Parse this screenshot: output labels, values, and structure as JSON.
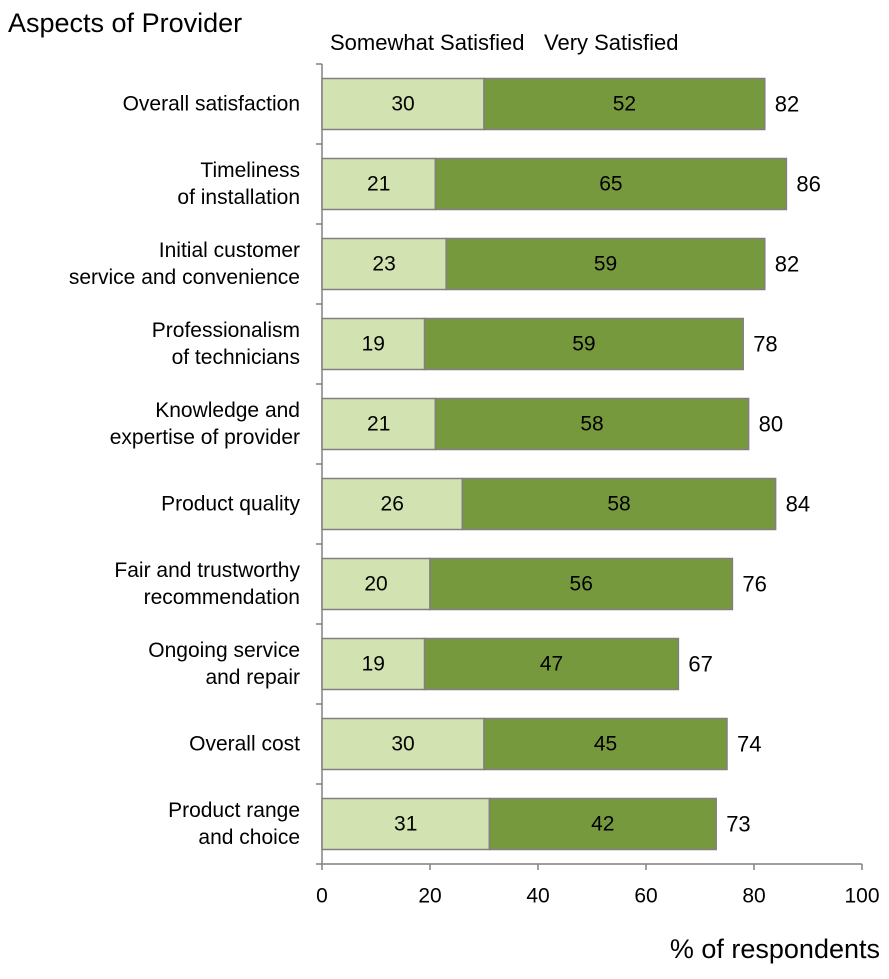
{
  "chart_data": {
    "type": "bar",
    "orientation": "horizontal",
    "stacked": true,
    "title": "Aspects of Provider",
    "xlabel": "% of respondents",
    "ylabel": "",
    "xlim": [
      0,
      100
    ],
    "xticks": [
      0,
      20,
      40,
      60,
      80,
      100
    ],
    "grid": false,
    "legend_position": "top",
    "categories": [
      [
        "Overall satisfaction"
      ],
      [
        "Timeliness",
        "of installation"
      ],
      [
        "Initial customer",
        "service and convenience"
      ],
      [
        "Professionalism",
        "of technicians"
      ],
      [
        "Knowledge and",
        "expertise of provider"
      ],
      [
        "Product quality"
      ],
      [
        "Fair and trustworthy",
        "recommendation"
      ],
      [
        "Ongoing service",
        "and repair"
      ],
      [
        "Overall cost"
      ],
      [
        "Product range",
        "and choice"
      ]
    ],
    "series": [
      {
        "name": "Somewhat Satisfied",
        "color": "#d2e2b0",
        "values": [
          30,
          21,
          23,
          19,
          21,
          26,
          20,
          19,
          30,
          31
        ]
      },
      {
        "name": "Very Satisfied",
        "color": "#77993d",
        "values": [
          52,
          65,
          59,
          59,
          58,
          58,
          56,
          47,
          45,
          42
        ]
      }
    ],
    "totals": [
      82,
      86,
      82,
      78,
      80,
      84,
      76,
      67,
      74,
      73
    ]
  }
}
